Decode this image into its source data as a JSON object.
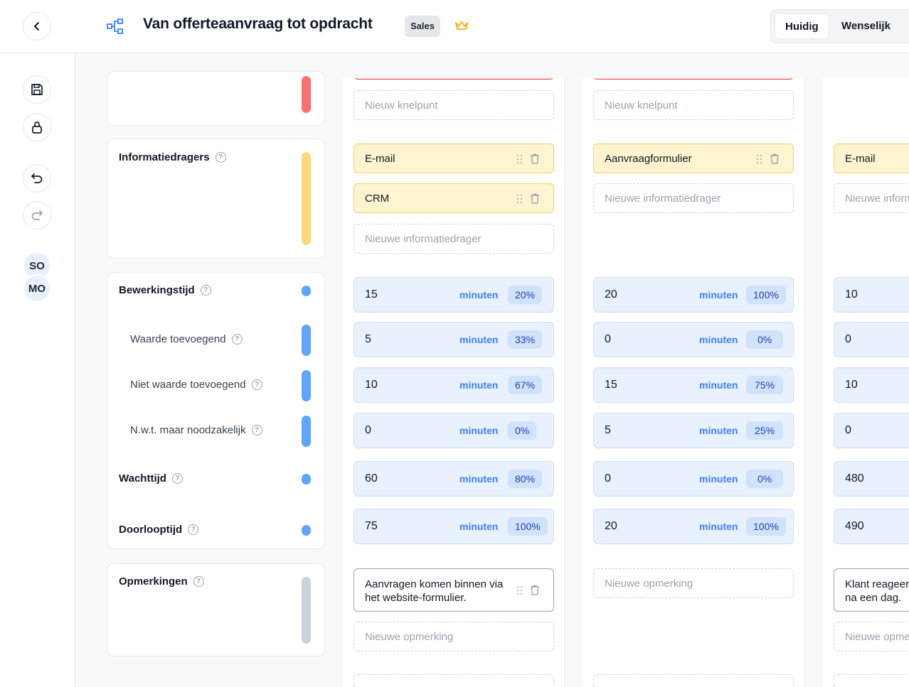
{
  "header": {
    "title": "Van offerteaanvraag tot opdracht",
    "badge": "Sales",
    "toggle": {
      "active": "Huidig",
      "other": "Wenselijk"
    }
  },
  "sidebar": {
    "avatars": [
      "SO",
      "MO"
    ]
  },
  "labels": {
    "informatiedragers": "Informatiedragers",
    "bewerkingstijd": "Bewerkingstijd",
    "waarde": "Waarde toevoegend",
    "niet_waarde": "Niet waarde toevoegend",
    "nwt": "N.w.t. maar noodzakelijk",
    "wachttijd": "Wachttijd",
    "doorlooptijd": "Doorlooptijd",
    "opmerkingen": "Opmerkingen"
  },
  "placeholders": {
    "knelpunt": "Nieuw knelpunt",
    "informatiedrager": "Nieuwe informatiedrager",
    "opmerking": "Nieuwe opmerking",
    "unit": "minuten"
  },
  "columns": [
    {
      "informatiedragers": [
        "E-mail",
        "CRM"
      ],
      "times": [
        {
          "value": "15",
          "pct": "20%"
        },
        {
          "value": "5",
          "pct": "33%"
        },
        {
          "value": "10",
          "pct": "67%"
        },
        {
          "value": "0",
          "pct": "0%"
        },
        {
          "value": "60",
          "pct": "80%"
        },
        {
          "value": "75",
          "pct": "100%"
        }
      ],
      "note": "Aanvragen komen binnen via het website-formulier."
    },
    {
      "informatiedragers": [
        "Aanvraagformulier"
      ],
      "times": [
        {
          "value": "20",
          "pct": "100%"
        },
        {
          "value": "0",
          "pct": "0%"
        },
        {
          "value": "15",
          "pct": "75%"
        },
        {
          "value": "5",
          "pct": "25%"
        },
        {
          "value": "0",
          "pct": "0%"
        },
        {
          "value": "20",
          "pct": "100%"
        }
      ],
      "note": ""
    },
    {
      "informatiedragers": [
        "E-mail"
      ],
      "times": [
        {
          "value": "10"
        },
        {
          "value": "0"
        },
        {
          "value": "10"
        },
        {
          "value": "0"
        },
        {
          "value": "480"
        },
        {
          "value": "490"
        }
      ],
      "note": "Klant reageert pas na een dag."
    }
  ],
  "colors": {
    "red": "#f87171",
    "yellow": "#fcd97d",
    "blue": "#60a5fa",
    "gray": "#cbd2dc",
    "accent": "#3b82f6"
  }
}
